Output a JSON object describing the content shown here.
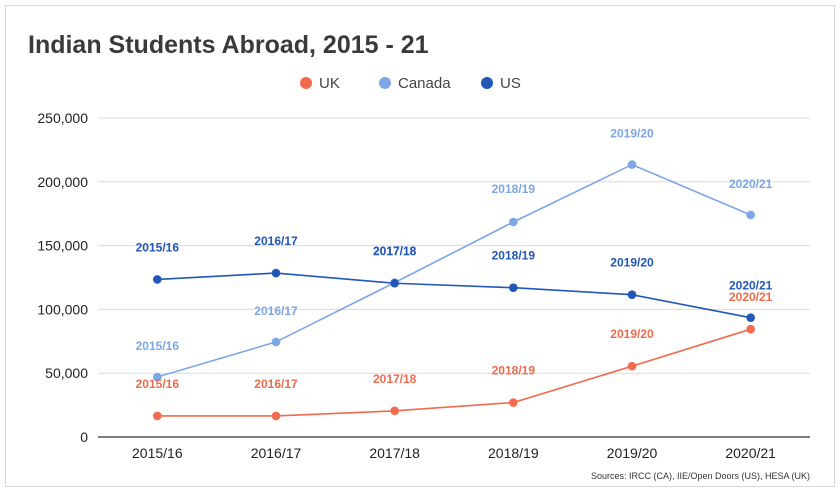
{
  "chart_data": {
    "type": "line",
    "title": "Indian Students Abroad, 2015 - 21",
    "xlabel": "",
    "ylabel": "",
    "categories": [
      "2015/16",
      "2016/17",
      "2017/18",
      "2018/19",
      "2019/20",
      "2020/21"
    ],
    "ylim": [
      0,
      250000
    ],
    "yticks": [
      0,
      50000,
      100000,
      150000,
      200000,
      250000
    ],
    "ytick_labels": [
      "0",
      "50,000",
      "100,000",
      "150,000",
      "200,000",
      "250,000"
    ],
    "grid": true,
    "legend_position": "top-center",
    "series": [
      {
        "name": "UK",
        "color": "#f26b4f",
        "values": [
          16500,
          16500,
          20500,
          27000,
          55500,
          84500
        ],
        "labels": [
          "2015/16",
          "2016/17",
          "2017/18",
          "2018/19",
          "2019/20",
          "2020/21"
        ]
      },
      {
        "name": "Canada",
        "color": "#7ca6e6",
        "values": [
          47000,
          74500,
          121000,
          168500,
          213500,
          174000
        ],
        "labels": [
          "2015/16",
          "2016/17",
          "2017/18",
          "2018/19",
          "2019/20",
          "2020/21"
        ]
      },
      {
        "name": "US",
        "color": "#2057b8",
        "values": [
          123500,
          128500,
          120500,
          117000,
          111500,
          93500
        ],
        "labels": [
          "2015/16",
          "2016/17",
          "2017/18",
          "2018/19",
          "2019/20",
          "2020/21"
        ]
      }
    ],
    "source": "Sources: IRCC (CA), IIE/Open Doors (US), HESA (UK)"
  }
}
